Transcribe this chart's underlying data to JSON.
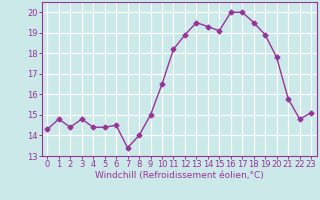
{
  "x": [
    0,
    1,
    2,
    3,
    4,
    5,
    6,
    7,
    8,
    9,
    10,
    11,
    12,
    13,
    14,
    15,
    16,
    17,
    18,
    19,
    20,
    21,
    22,
    23
  ],
  "y": [
    14.3,
    14.8,
    14.4,
    14.8,
    14.4,
    14.4,
    14.5,
    13.4,
    14.0,
    15.0,
    16.5,
    18.2,
    18.9,
    19.5,
    19.3,
    19.1,
    20.0,
    20.0,
    19.5,
    18.9,
    17.8,
    15.8,
    14.8,
    15.1
  ],
  "line_color": "#993399",
  "marker": "D",
  "marker_size": 2.5,
  "line_width": 1.0,
  "bg_color": "#cce9e9",
  "grid_color": "#ffffff",
  "xlabel": "Windchill (Refroidissement éolien,°C)",
  "xlabel_color": "#993399",
  "xlabel_fontsize": 6.5,
  "tick_color": "#993399",
  "tick_fontsize": 6.0,
  "ylim": [
    13,
    20.5
  ],
  "yticks": [
    13,
    14,
    15,
    16,
    17,
    18,
    19,
    20
  ],
  "xlim": [
    -0.5,
    23.5
  ],
  "xticks": [
    0,
    1,
    2,
    3,
    4,
    5,
    6,
    7,
    8,
    9,
    10,
    11,
    12,
    13,
    14,
    15,
    16,
    17,
    18,
    19,
    20,
    21,
    22,
    23
  ]
}
